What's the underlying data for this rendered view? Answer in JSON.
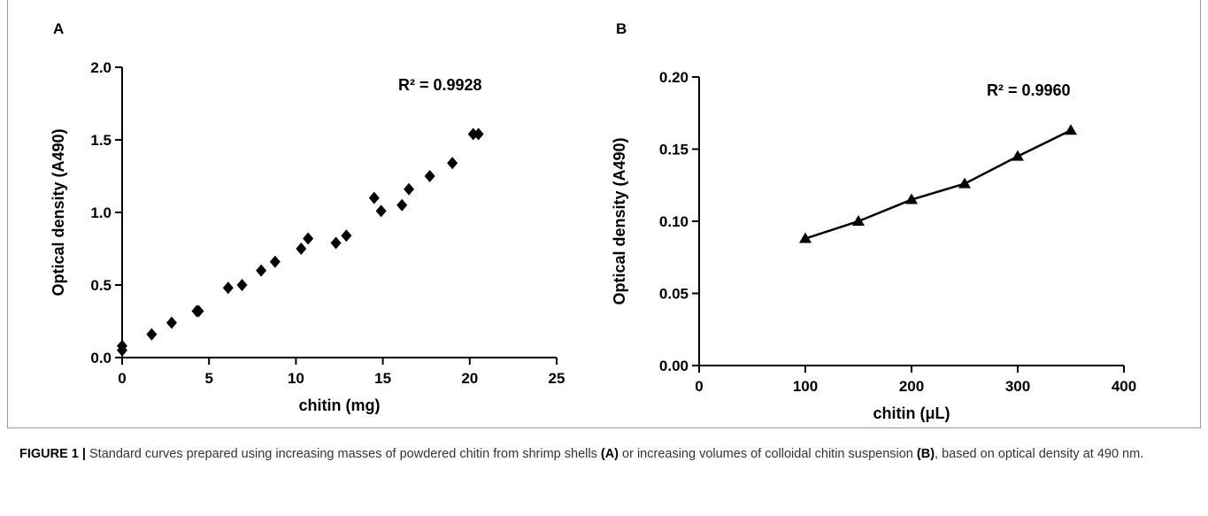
{
  "chart_data": [
    {
      "type": "scatter",
      "panel": "A",
      "annotation": "R² = 0.9928",
      "x_label": "chitin (mg)",
      "y_label": "Optical density (A490)",
      "x": [
        0,
        0,
        1.7,
        2.85,
        4.3,
        4.4,
        6.1,
        6.9,
        8.0,
        8.8,
        10.3,
        10.7,
        12.3,
        12.9,
        14.5,
        14.9,
        16.1,
        16.5,
        17.7,
        19.0,
        20.2,
        20.5
      ],
      "values": [
        0.08,
        0.05,
        0.16,
        0.24,
        0.32,
        0.32,
        0.48,
        0.5,
        0.6,
        0.66,
        0.75,
        0.82,
        0.79,
        0.84,
        1.1,
        1.01,
        1.05,
        1.16,
        1.25,
        1.34,
        1.54,
        1.54
      ],
      "marker": "diamond",
      "color": "#000000",
      "xlim": [
        0,
        25
      ],
      "xticks": [
        0,
        5,
        10,
        15,
        20,
        25
      ],
      "ylim": [
        0,
        2.0
      ],
      "yticks": [
        {
          "value": 0,
          "label": "0.0"
        },
        0.5,
        {
          "value": 1.0,
          "label": "1.0"
        },
        1.5,
        {
          "value": 2.0,
          "label": "2.0"
        }
      ]
    },
    {
      "type": "line",
      "panel": "B",
      "annotation": "R² = 0.9960",
      "x_label": "chitin (μL)",
      "y_label": "Optical density (A490)",
      "x": [
        100,
        150,
        200,
        250,
        300,
        350
      ],
      "values": [
        0.088,
        0.1,
        0.115,
        0.126,
        0.145,
        0.163
      ],
      "marker": "triangle",
      "color": "#000000",
      "xlim": [
        0,
        400
      ],
      "xticks": [
        0,
        100,
        200,
        300,
        400
      ],
      "ylim": [
        0,
        0.2
      ],
      "yticks": [
        {
          "value": 0,
          "label": "0.00"
        },
        {
          "value": 0.05,
          "label": "0.05"
        },
        {
          "value": 0.1,
          "label": "0.10"
        },
        {
          "value": 0.15,
          "label": "0.15"
        },
        {
          "value": 0.2,
          "label": "0.20"
        }
      ]
    }
  ],
  "caption": [
    {
      "text": "FIGURE 1 |",
      "bold": true
    },
    {
      "text": " Standard curves prepared using increasing masses of powdered chitin from shrimp shells ",
      "bold": false
    },
    {
      "text": "(A)",
      "bold": true
    },
    {
      "text": " or increasing volumes of colloidal chitin suspension ",
      "bold": false
    },
    {
      "text": "(B)",
      "bold": true
    },
    {
      "text": ", based on optical density at 490 nm.",
      "bold": false
    }
  ]
}
